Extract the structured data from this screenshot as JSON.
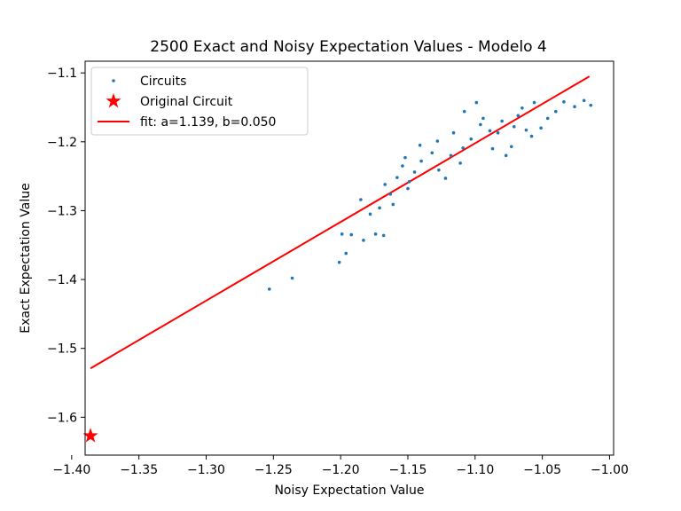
{
  "chart_data": {
    "type": "scatter",
    "title": "2500 Exact and Noisy Expectation Values - Modelo 4",
    "xlabel": "Noisy Expectation Value",
    "ylabel": "Exact Expectation Value",
    "xlim": [
      -1.39,
      -0.997
    ],
    "ylim": [
      -1.655,
      -1.083
    ],
    "xticks": [
      -1.4,
      -1.35,
      -1.3,
      -1.25,
      -1.2,
      -1.15,
      -1.1,
      -1.05,
      -1.0
    ],
    "xtick_labels": [
      "−1.40",
      "−1.35",
      "−1.30",
      "−1.25",
      "−1.20",
      "−1.15",
      "−1.10",
      "−1.05",
      "−1.00"
    ],
    "yticks": [
      -1.6,
      -1.5,
      -1.4,
      -1.3,
      -1.2,
      -1.1
    ],
    "ytick_labels": [
      "−1.6",
      "−1.5",
      "−1.4",
      "−1.3",
      "−1.2",
      "−1.1"
    ],
    "grid": false,
    "legend_position": "top-left",
    "series": [
      {
        "name": "Circuits",
        "kind": "scatter",
        "color": "#1f77b4",
        "points": [
          [
            -1.253,
            -1.414
          ],
          [
            -1.236,
            -1.398
          ],
          [
            -1.201,
            -1.375
          ],
          [
            -1.196,
            -1.362
          ],
          [
            -1.199,
            -1.334
          ],
          [
            -1.192,
            -1.335
          ],
          [
            -1.183,
            -1.343
          ],
          [
            -1.174,
            -1.334
          ],
          [
            -1.168,
            -1.336
          ],
          [
            -1.178,
            -1.305
          ],
          [
            -1.171,
            -1.296
          ],
          [
            -1.185,
            -1.284
          ],
          [
            -1.167,
            -1.262
          ],
          [
            -1.158,
            -1.252
          ],
          [
            -1.15,
            -1.268
          ],
          [
            -1.145,
            -1.244
          ],
          [
            -1.152,
            -1.223
          ],
          [
            -1.141,
            -1.205
          ],
          [
            -1.154,
            -1.235
          ],
          [
            -1.163,
            -1.276
          ],
          [
            -1.161,
            -1.291
          ],
          [
            -1.149,
            -1.258
          ],
          [
            -1.14,
            -1.228
          ],
          [
            -1.132,
            -1.216
          ],
          [
            -1.127,
            -1.241
          ],
          [
            -1.122,
            -1.253
          ],
          [
            -1.118,
            -1.22
          ],
          [
            -1.111,
            -1.231
          ],
          [
            -1.109,
            -1.209
          ],
          [
            -1.103,
            -1.196
          ],
          [
            -1.116,
            -1.187
          ],
          [
            -1.128,
            -1.199
          ],
          [
            -1.087,
            -1.21
          ],
          [
            -1.077,
            -1.22
          ],
          [
            -1.083,
            -1.187
          ],
          [
            -1.071,
            -1.178
          ],
          [
            -1.094,
            -1.166
          ],
          [
            -1.099,
            -1.143
          ],
          [
            -1.108,
            -1.156
          ],
          [
            -1.073,
            -1.207
          ],
          [
            -1.058,
            -1.192
          ],
          [
            -1.051,
            -1.18
          ],
          [
            -1.046,
            -1.166
          ],
          [
            -1.04,
            -1.156
          ],
          [
            -1.062,
            -1.183
          ],
          [
            -1.08,
            -1.17
          ],
          [
            -1.089,
            -1.184
          ],
          [
            -1.096,
            -1.175
          ],
          [
            -1.068,
            -1.162
          ],
          [
            -1.034,
            -1.142
          ],
          [
            -1.026,
            -1.149
          ],
          [
            -1.019,
            -1.14
          ],
          [
            -1.014,
            -1.147
          ],
          [
            -1.056,
            -1.143
          ],
          [
            -1.065,
            -1.151
          ]
        ]
      },
      {
        "name": "Original Circuit",
        "kind": "star",
        "color": "#ff0000",
        "points": [
          [
            -1.386,
            -1.627
          ]
        ]
      },
      {
        "name": "fit: a=1.139, b=0.050",
        "kind": "line",
        "color": "#ff0000",
        "points": [
          [
            -1.386,
            -1.529
          ],
          [
            -1.015,
            -1.105
          ]
        ]
      }
    ]
  }
}
